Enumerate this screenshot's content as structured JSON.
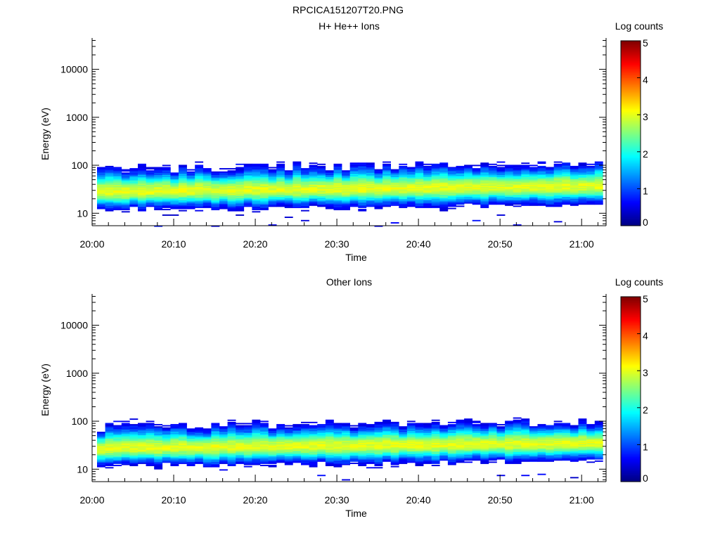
{
  "figure": {
    "title": "RPCICA151207T20.PNG"
  },
  "chart_data": [
    {
      "type": "heatmap",
      "title": "H+ He++ Ions",
      "xlabel": "Time",
      "ylabel": "Energy (eV)",
      "x_ticks": [
        "20:00",
        "20:10",
        "20:20",
        "20:30",
        "20:40",
        "20:50",
        "21:00"
      ],
      "x_range_minutes": [
        0,
        63
      ],
      "y_scale": "log",
      "y_ticks": [
        "10",
        "100",
        "1000",
        "10000"
      ],
      "y_range_eV": [
        5.5,
        45000
      ],
      "colorbar": {
        "label": "Log counts",
        "range": [
          0,
          5
        ],
        "ticks": [
          "0",
          "1",
          "2",
          "3",
          "4",
          "5"
        ]
      },
      "band": {
        "center_eV_start": 28,
        "center_eV_end": 36,
        "upper_edge_eV": 80,
        "lower_edge_eV": 14,
        "peak_log_counts": 3.0
      }
    },
    {
      "type": "heatmap",
      "title": "Other Ions",
      "xlabel": "Time",
      "ylabel": "Energy (eV)",
      "x_ticks": [
        "20:00",
        "20:10",
        "20:20",
        "20:30",
        "20:40",
        "20:50",
        "21:00"
      ],
      "x_range_minutes": [
        0,
        63
      ],
      "y_scale": "log",
      "y_ticks": [
        "10",
        "100",
        "1000",
        "10000"
      ],
      "y_range_eV": [
        5.5,
        45000
      ],
      "colorbar": {
        "label": "Log counts",
        "range": [
          0,
          5
        ],
        "ticks": [
          "0",
          "1",
          "2",
          "3",
          "4",
          "5"
        ]
      },
      "band": {
        "center_eV_start": 27,
        "center_eV_end": 35,
        "upper_edge_eV": 75,
        "lower_edge_eV": 14,
        "peak_log_counts": 3.0
      }
    }
  ]
}
